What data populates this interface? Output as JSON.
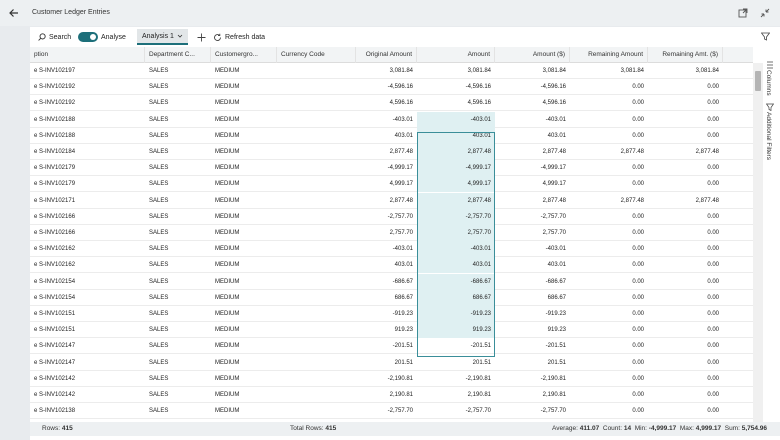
{
  "page": {
    "title": "Customer Ledger Entries"
  },
  "toolbar": {
    "search_label": "Search",
    "analyse_label": "Analyse",
    "tab_label": "Analysis 1",
    "refresh_label": "Refresh data"
  },
  "side_panel": {
    "columns_label": "Columns",
    "filters_label": "Additional Filters"
  },
  "columns": [
    "ption",
    "Department C...",
    "Customergro...",
    "Currency Code",
    "Original Amount",
    "Amount",
    "Amount ($)",
    "Remaining Amount",
    "Remaining Amt. ($)"
  ],
  "rows": [
    [
      "e S-INV102197",
      "SALES",
      "MEDIUM",
      "",
      "3,081.84",
      "3,081.84",
      "3,081.84",
      "3,081.84",
      "3,081.84"
    ],
    [
      "e S-INV102192",
      "SALES",
      "MEDIUM",
      "",
      "-4,596.16",
      "-4,596.16",
      "-4,596.16",
      "0.00",
      "0.00"
    ],
    [
      "e S-INV102192",
      "SALES",
      "MEDIUM",
      "",
      "4,596.16",
      "4,596.16",
      "4,596.16",
      "0.00",
      "0.00"
    ],
    [
      "e S-INV102188",
      "SALES",
      "MEDIUM",
      "",
      "-403.01",
      "-403.01",
      "-403.01",
      "0.00",
      "0.00"
    ],
    [
      "e S-INV102188",
      "SALES",
      "MEDIUM",
      "",
      "403.01",
      "403.01",
      "403.01",
      "0.00",
      "0.00"
    ],
    [
      "e S-INV102184",
      "SALES",
      "MEDIUM",
      "",
      "2,877.48",
      "2,877.48",
      "2,877.48",
      "2,877.48",
      "2,877.48"
    ],
    [
      "e S-INV102179",
      "SALES",
      "MEDIUM",
      "",
      "-4,999.17",
      "-4,999.17",
      "-4,999.17",
      "0.00",
      "0.00"
    ],
    [
      "e S-INV102179",
      "SALES",
      "MEDIUM",
      "",
      "4,999.17",
      "4,999.17",
      "4,999.17",
      "0.00",
      "0.00"
    ],
    [
      "e S-INV102171",
      "SALES",
      "MEDIUM",
      "",
      "2,877.48",
      "2,877.48",
      "2,877.48",
      "2,877.48",
      "2,877.48"
    ],
    [
      "e S-INV102166",
      "SALES",
      "MEDIUM",
      "",
      "-2,757.70",
      "-2,757.70",
      "-2,757.70",
      "0.00",
      "0.00"
    ],
    [
      "e S-INV102166",
      "SALES",
      "MEDIUM",
      "",
      "2,757.70",
      "2,757.70",
      "2,757.70",
      "0.00",
      "0.00"
    ],
    [
      "e S-INV102162",
      "SALES",
      "MEDIUM",
      "",
      "-403.01",
      "-403.01",
      "-403.01",
      "0.00",
      "0.00"
    ],
    [
      "e S-INV102162",
      "SALES",
      "MEDIUM",
      "",
      "403.01",
      "403.01",
      "403.01",
      "0.00",
      "0.00"
    ],
    [
      "e S-INV102154",
      "SALES",
      "MEDIUM",
      "",
      "-686.67",
      "-686.67",
      "-686.67",
      "0.00",
      "0.00"
    ],
    [
      "e S-INV102154",
      "SALES",
      "MEDIUM",
      "",
      "686.67",
      "686.67",
      "686.67",
      "0.00",
      "0.00"
    ],
    [
      "e S-INV102151",
      "SALES",
      "MEDIUM",
      "",
      "-919.23",
      "-919.23",
      "-919.23",
      "0.00",
      "0.00"
    ],
    [
      "e S-INV102151",
      "SALES",
      "MEDIUM",
      "",
      "919.23",
      "919.23",
      "919.23",
      "0.00",
      "0.00"
    ],
    [
      "e S-INV102147",
      "SALES",
      "MEDIUM",
      "",
      "-201.51",
      "-201.51",
      "-201.51",
      "0.00",
      "0.00"
    ],
    [
      "e S-INV102147",
      "SALES",
      "MEDIUM",
      "",
      "201.51",
      "201.51",
      "201.51",
      "0.00",
      "0.00"
    ],
    [
      "e S-INV102142",
      "SALES",
      "MEDIUM",
      "",
      "-2,190.81",
      "-2,190.81",
      "-2,190.81",
      "0.00",
      "0.00"
    ],
    [
      "e S-INV102142",
      "SALES",
      "MEDIUM",
      "",
      "2,190.81",
      "2,190.81",
      "2,190.81",
      "0.00",
      "0.00"
    ],
    [
      "e S-INV102138",
      "SALES",
      "MEDIUM",
      "",
      "-2,757.70",
      "-2,757.70",
      "-2,757.70",
      "0.00",
      "0.00"
    ]
  ],
  "footer": {
    "rows_label": "Rows:",
    "rows_value": "415",
    "total_rows_label": "Total Rows:",
    "total_rows_value": "415",
    "average_label": "Average:",
    "average_value": "411.07",
    "count_label": "Count:",
    "count_value": "14",
    "min_label": "Min:",
    "min_value": "-4,999.17",
    "max_label": "Max:",
    "max_value": "4,999.17",
    "sum_label": "Sum:",
    "sum_value": "5,754.96"
  },
  "colors": {
    "accent": "#1d6f7a",
    "selection": "#dff0f2"
  }
}
